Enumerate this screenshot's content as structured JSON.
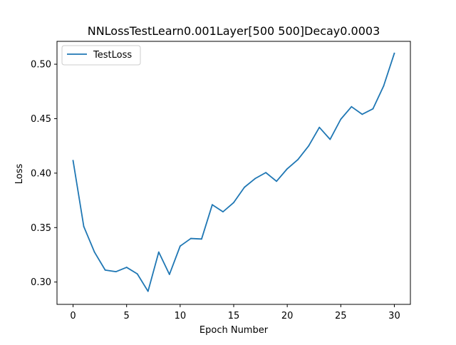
{
  "chart_data": {
    "type": "line",
    "title": "NNLossTestLearn0.001Layer[500 500]Decay0.0003",
    "xlabel": "Epoch Number",
    "ylabel": "Loss",
    "xlim": [
      -1.5,
      31.5
    ],
    "ylim": [
      0.2795,
      0.521
    ],
    "xticks": [
      0,
      5,
      10,
      15,
      20,
      25,
      30
    ],
    "xtick_labels": [
      "0",
      "5",
      "10",
      "15",
      "20",
      "25",
      "30"
    ],
    "yticks": [
      0.3,
      0.35,
      0.4,
      0.45,
      0.5
    ],
    "ytick_labels": [
      "0.30",
      "0.35",
      "0.40",
      "0.45",
      "0.50"
    ],
    "grid": false,
    "legend": {
      "position": "upper-left",
      "entries": [
        "TestLoss"
      ]
    },
    "series": [
      {
        "name": "TestLoss",
        "color": "#1f77b4",
        "x": [
          0,
          1,
          2,
          3,
          4,
          5,
          6,
          7,
          8,
          9,
          10,
          11,
          12,
          13,
          14,
          15,
          16,
          17,
          18,
          19,
          20,
          21,
          22,
          23,
          24,
          25,
          26,
          27,
          28,
          29,
          30
        ],
        "values": [
          0.4115,
          0.351,
          0.3275,
          0.311,
          0.3095,
          0.3135,
          0.3075,
          0.2915,
          0.3275,
          0.307,
          0.333,
          0.34,
          0.3395,
          0.371,
          0.3645,
          0.373,
          0.387,
          0.395,
          0.4005,
          0.3925,
          0.404,
          0.4125,
          0.425,
          0.442,
          0.431,
          0.4495,
          0.461,
          0.454,
          0.459,
          0.48,
          0.51
        ]
      }
    ]
  }
}
